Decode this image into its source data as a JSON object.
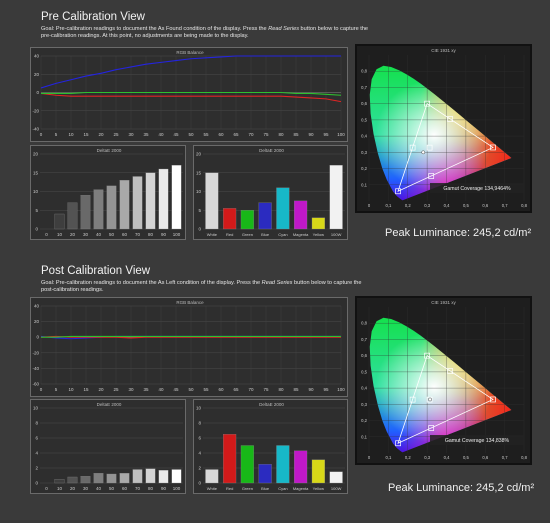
{
  "sections": [
    {
      "id": "pre",
      "title": "Pre Calibration View",
      "goal_parts": [
        "Goal: Pre-calibration readings to document the As Found condition of the display. Press the ",
        "Read Series",
        " button below to capture the pre-calibration readings. At this point, no adjustments are being made to the display."
      ],
      "peak_luminance": "Peak Luminance: 245,2 cd/m²",
      "gamut_coverage": "Gamut Coverage 134,9464%"
    },
    {
      "id": "post",
      "title": "Post Calibration View",
      "goal_parts": [
        "Goal: Pre-calibration readings to document the As Left condition of the display. Press the ",
        "Read Series",
        " button below to capture the post-calibration readings."
      ],
      "peak_luminance": "Peak Luminance: 245,2 cd/m²",
      "gamut_coverage": "Gamut Coverage 134,838%"
    }
  ],
  "chart_data": [
    {
      "id": "pre-rgb",
      "type": "line",
      "title": "RGB Balance",
      "x": [
        0,
        5,
        10,
        15,
        20,
        25,
        30,
        35,
        40,
        45,
        50,
        55,
        60,
        65,
        70,
        75,
        80,
        85,
        90,
        95,
        100
      ],
      "ylim": [
        -40,
        40
      ],
      "yticks": [
        -40,
        -20,
        0,
        20,
        40
      ],
      "xticks": [
        0,
        5,
        10,
        15,
        20,
        25,
        30,
        35,
        40,
        45,
        50,
        55,
        60,
        65,
        70,
        75,
        80,
        85,
        90,
        95,
        100
      ],
      "series": [
        {
          "color": "#2424e0",
          "values": [
            5,
            10,
            14,
            18,
            21,
            25,
            28,
            31,
            33,
            35,
            37,
            38,
            39,
            40,
            40,
            40,
            40,
            40,
            40,
            40,
            40
          ]
        },
        {
          "color": "#e02424",
          "values": [
            -1,
            -3,
            -4,
            -4,
            -4,
            -4,
            -4,
            -4,
            -4,
            -4,
            -4,
            -4,
            -4,
            -4,
            -4,
            -4,
            -4,
            -5,
            -6,
            -7,
            -10
          ]
        },
        {
          "color": "#2ec02e",
          "values": [
            -1,
            -1,
            -1,
            0,
            0,
            0,
            0,
            0,
            0,
            0,
            0,
            0,
            0,
            0,
            0,
            0,
            0,
            -1,
            -1,
            -2,
            -3
          ]
        }
      ]
    },
    {
      "id": "pre-deltae-gray",
      "type": "bar",
      "title": "DeltaE 2000",
      "categories": [
        "0",
        "10",
        "20",
        "30",
        "40",
        "50",
        "60",
        "70",
        "80",
        "90",
        "100"
      ],
      "values": [
        0,
        4,
        7,
        9,
        10.5,
        11.5,
        13,
        14,
        15,
        16,
        17
      ],
      "ylim": [
        0,
        20
      ],
      "yticks": [
        0,
        5,
        10,
        15,
        20
      ]
    },
    {
      "id": "pre-deltae-color",
      "type": "bar",
      "title": "DeltaE 2000",
      "categories": [
        "White",
        "Red",
        "Green",
        "Blue",
        "Cyan",
        "Magenta",
        "Yellow",
        "100W"
      ],
      "colors": [
        "#d8d8d8",
        "#d21a1a",
        "#18b818",
        "#2b2bc0",
        "#17b8c8",
        "#c018c8",
        "#d8d818",
        "#f2f2f2"
      ],
      "values": [
        15,
        5.5,
        5,
        7,
        11,
        7.5,
        3,
        17
      ],
      "ylim": [
        0,
        20
      ],
      "yticks": [
        0,
        5,
        10,
        15,
        20
      ]
    },
    {
      "id": "pre-cie",
      "type": "scatter",
      "title": "CIE 1931 xy",
      "xlim": [
        0,
        0.8
      ],
      "ylim": [
        0,
        0.9
      ],
      "xticks": [
        "0",
        "0,1",
        "0,2",
        "0,3",
        "0,4",
        "0,5",
        "0,6",
        "0,7",
        "0,8"
      ],
      "yticks": [
        "0,1",
        "0,2",
        "0,3",
        "0,4",
        "0,5",
        "0,6",
        "0,7",
        "0,8"
      ],
      "target_gamut": [
        [
          0.64,
          0.33
        ],
        [
          0.3,
          0.6
        ],
        [
          0.15,
          0.06
        ]
      ],
      "target_points": [
        [
          0.64,
          0.33
        ],
        [
          0.3,
          0.6
        ],
        [
          0.15,
          0.06
        ],
        [
          0.225,
          0.329
        ],
        [
          0.321,
          0.154
        ],
        [
          0.419,
          0.505
        ],
        [
          0.3127,
          0.329
        ]
      ],
      "measured_points": [
        [
          0.28,
          0.3
        ]
      ]
    },
    {
      "id": "post-rgb",
      "type": "line",
      "title": "RGB Balance",
      "x": [
        0,
        5,
        10,
        15,
        20,
        25,
        30,
        35,
        40,
        45,
        50,
        55,
        60,
        65,
        70,
        75,
        80,
        85,
        90,
        95,
        100
      ],
      "ylim": [
        -60,
        40
      ],
      "yticks": [
        -60,
        -40,
        -20,
        0,
        20,
        40
      ],
      "xticks": [
        0,
        5,
        10,
        15,
        20,
        25,
        30,
        35,
        40,
        45,
        50,
        55,
        60,
        65,
        70,
        75,
        80,
        85,
        90,
        95,
        100
      ],
      "series": [
        {
          "color": "#2424e0",
          "values": [
            1,
            -1,
            -2,
            -1,
            0,
            1,
            1,
            1,
            1,
            1,
            1,
            1,
            1,
            1,
            1,
            1,
            1,
            1,
            1,
            1,
            1
          ]
        },
        {
          "color": "#e02424",
          "values": [
            0,
            1,
            0,
            0,
            0,
            0,
            -1,
            0,
            0,
            0,
            0,
            0,
            0,
            0,
            0,
            0,
            0,
            0,
            0,
            0,
            0
          ]
        },
        {
          "color": "#2ec02e",
          "values": [
            0,
            0,
            1,
            1,
            1,
            1,
            1,
            1,
            1,
            1,
            1,
            1,
            1,
            1,
            1,
            1,
            1,
            1,
            1,
            1,
            1
          ]
        }
      ]
    },
    {
      "id": "post-deltae-gray",
      "type": "bar",
      "title": "DeltaE 2000",
      "categories": [
        "0",
        "10",
        "20",
        "30",
        "40",
        "50",
        "60",
        "70",
        "80",
        "90",
        "100"
      ],
      "values": [
        0,
        0.5,
        0.8,
        0.9,
        1.3,
        1.2,
        1.3,
        1.8,
        1.9,
        1.7,
        1.8
      ],
      "ylim": [
        0,
        10
      ],
      "yticks": [
        0,
        2,
        4,
        6,
        8,
        10
      ]
    },
    {
      "id": "post-deltae-color",
      "type": "bar",
      "title": "DeltaE 2000",
      "categories": [
        "White",
        "Red",
        "Green",
        "Blue",
        "Cyan",
        "Magenta",
        "Yellow",
        "100W"
      ],
      "colors": [
        "#d8d8d8",
        "#d21a1a",
        "#18b818",
        "#2b2bc0",
        "#17b8c8",
        "#c018c8",
        "#d8d818",
        "#f2f2f2"
      ],
      "values": [
        1.8,
        6.5,
        5,
        2.5,
        5,
        4.3,
        3.1,
        1.5
      ],
      "ylim": [
        0,
        10
      ],
      "yticks": [
        0,
        2,
        4,
        6,
        8,
        10
      ]
    },
    {
      "id": "post-cie",
      "type": "scatter",
      "title": "CIE 1931 xy",
      "xlim": [
        0,
        0.8
      ],
      "ylim": [
        0,
        0.9
      ],
      "xticks": [
        "0",
        "0,1",
        "0,2",
        "0,3",
        "0,4",
        "0,5",
        "0,6",
        "0,7",
        "0,8"
      ],
      "yticks": [
        "0,1",
        "0,2",
        "0,3",
        "0,4",
        "0,5",
        "0,6",
        "0,7",
        "0,8"
      ],
      "target_gamut": [
        [
          0.64,
          0.33
        ],
        [
          0.3,
          0.6
        ],
        [
          0.15,
          0.06
        ]
      ],
      "target_points": [
        [
          0.64,
          0.33
        ],
        [
          0.3,
          0.6
        ],
        [
          0.15,
          0.06
        ],
        [
          0.225,
          0.329
        ],
        [
          0.321,
          0.154
        ],
        [
          0.419,
          0.505
        ],
        [
          0.3127,
          0.329
        ]
      ],
      "measured_points": [
        [
          0.315,
          0.33
        ]
      ]
    }
  ]
}
